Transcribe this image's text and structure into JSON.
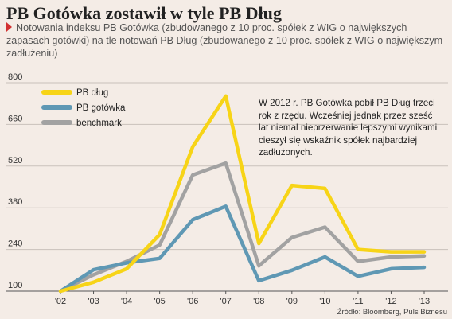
{
  "title": "PB Gotówka zostawił w tyle PB Dług",
  "subtitle": "Notowania indeksu PB Gotówka (zbudowanego z 10 proc. spółek z WIG o największych zapasach gotówki) na tle notowań PB Dług (zbudowanego z 10 proc. spółek z WIG o największym zadłużeniu)",
  "annotation": "W 2012 r. PB Gotówka pobił PB Dług trzeci rok z rzędu. Wcześniej jednak przez sześć lat niemal nieprzerwanie lepszymi wynikami cieszył się wskaźnik spółek najbardziej zadłużonych.",
  "source": "Źródło: Bloomberg, Puls Biznesu",
  "chart_data": {
    "type": "line",
    "x": [
      "'02",
      "'03",
      "'04",
      "'05",
      "'06",
      "'07",
      "'08",
      "'09",
      "'10",
      "'11",
      "'12",
      "'13"
    ],
    "ylim": [
      100,
      800
    ],
    "yticks": [
      100,
      240,
      380,
      520,
      660,
      800
    ],
    "grid": true,
    "legend": "top-left",
    "series": [
      {
        "name": "PB dług",
        "color": "#f7d417",
        "values": [
          100,
          130,
          175,
          290,
          585,
          755,
          260,
          455,
          445,
          240,
          232,
          232
        ]
      },
      {
        "name": "PB gotówka",
        "color": "#5f98b4",
        "values": [
          100,
          172,
          195,
          210,
          340,
          385,
          135,
          170,
          215,
          150,
          175,
          180
        ]
      },
      {
        "name": "benchmark",
        "color": "#a2a2a2",
        "values": [
          100,
          155,
          200,
          255,
          490,
          530,
          185,
          280,
          315,
          200,
          215,
          218
        ]
      }
    ]
  }
}
